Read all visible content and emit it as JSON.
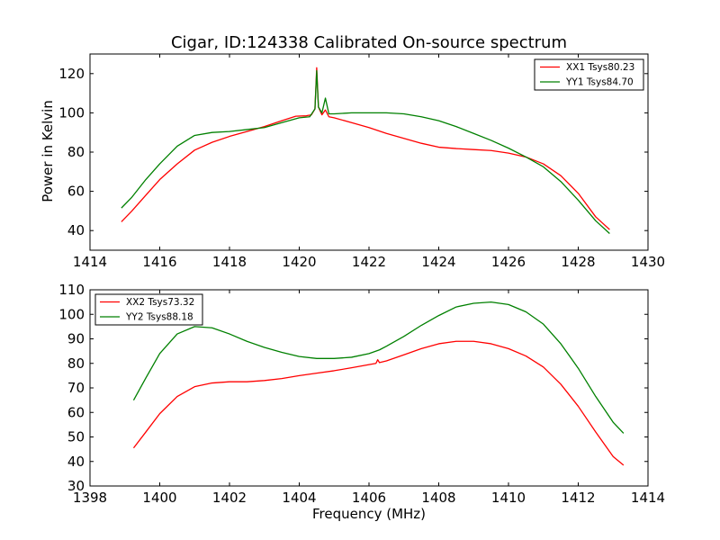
{
  "colors": {
    "red": "#ff0000",
    "green": "#008000"
  },
  "chart_data": [
    {
      "type": "line",
      "title": "Cigar, ID:124338 Calibrated On-source spectrum",
      "xlabel": "",
      "ylabel": "Power in Kelvin",
      "xlim": [
        1414,
        1430
      ],
      "ylim": [
        30,
        130
      ],
      "xticks": [
        1414,
        1416,
        1418,
        1420,
        1422,
        1424,
        1426,
        1428,
        1430
      ],
      "yticks": [
        40,
        60,
        80,
        100,
        120
      ],
      "legend_position": "top-right",
      "series": [
        {
          "name": "XX1 Tsys80.23",
          "color": "#ff0000",
          "points": [
            [
              1414.9,
              44.5
            ],
            [
              1415.2,
              50
            ],
            [
              1415.6,
              58
            ],
            [
              1416.0,
              66
            ],
            [
              1416.5,
              74
            ],
            [
              1417.0,
              81
            ],
            [
              1417.5,
              85
            ],
            [
              1418.0,
              88
            ],
            [
              1418.5,
              90.5
            ],
            [
              1419.0,
              93
            ],
            [
              1419.5,
              96
            ],
            [
              1419.9,
              98.3
            ],
            [
              1420.2,
              98.5
            ],
            [
              1420.35,
              99
            ],
            [
              1420.45,
              102
            ],
            [
              1420.5,
              123
            ],
            [
              1420.55,
              103
            ],
            [
              1420.65,
              99
            ],
            [
              1420.75,
              101.5
            ],
            [
              1420.85,
              98
            ],
            [
              1421.0,
              97.5
            ],
            [
              1421.5,
              95
            ],
            [
              1422.0,
              92.5
            ],
            [
              1422.5,
              89.5
            ],
            [
              1423.0,
              87
            ],
            [
              1423.5,
              84.5
            ],
            [
              1424.0,
              82.5
            ],
            [
              1424.5,
              81.8
            ],
            [
              1425.0,
              81.3
            ],
            [
              1425.5,
              80.8
            ],
            [
              1426.0,
              79.5
            ],
            [
              1426.5,
              77.5
            ],
            [
              1427.0,
              74
            ],
            [
              1427.5,
              68
            ],
            [
              1428.0,
              59
            ],
            [
              1428.5,
              47
            ],
            [
              1428.9,
              40.5
            ]
          ]
        },
        {
          "name": "YY1 Tsys84.70",
          "color": "#008000",
          "points": [
            [
              1414.9,
              51.5
            ],
            [
              1415.2,
              57
            ],
            [
              1415.6,
              66
            ],
            [
              1416.0,
              74
            ],
            [
              1416.5,
              83
            ],
            [
              1417.0,
              88.5
            ],
            [
              1417.5,
              90
            ],
            [
              1418.0,
              90.5
            ],
            [
              1418.5,
              91.5
            ],
            [
              1419.0,
              92.5
            ],
            [
              1419.5,
              95
            ],
            [
              1420.0,
              97.5
            ],
            [
              1420.3,
              98
            ],
            [
              1420.45,
              102
            ],
            [
              1420.5,
              121.5
            ],
            [
              1420.55,
              103
            ],
            [
              1420.65,
              100
            ],
            [
              1420.75,
              107.5
            ],
            [
              1420.85,
              99.5
            ],
            [
              1421.0,
              99.5
            ],
            [
              1421.5,
              100
            ],
            [
              1422.0,
              100
            ],
            [
              1422.5,
              100
            ],
            [
              1423.0,
              99.5
            ],
            [
              1423.5,
              98
            ],
            [
              1424.0,
              96
            ],
            [
              1424.5,
              93
            ],
            [
              1425.0,
              89.5
            ],
            [
              1425.5,
              86
            ],
            [
              1426.0,
              82
            ],
            [
              1426.5,
              77.5
            ],
            [
              1427.0,
              72.5
            ],
            [
              1427.5,
              65
            ],
            [
              1428.0,
              55.5
            ],
            [
              1428.5,
              45
            ],
            [
              1428.9,
              38.5
            ]
          ]
        }
      ]
    },
    {
      "type": "line",
      "title": "",
      "xlabel": "Frequency (MHz)",
      "ylabel": "",
      "xlim": [
        1398,
        1414
      ],
      "ylim": [
        30,
        110
      ],
      "xticks": [
        1398,
        1400,
        1402,
        1404,
        1406,
        1408,
        1410,
        1412,
        1414
      ],
      "yticks": [
        30,
        40,
        50,
        60,
        70,
        80,
        90,
        100,
        110
      ],
      "legend_position": "top-left",
      "series": [
        {
          "name": "XX2 Tsys73.32",
          "color": "#ff0000",
          "points": [
            [
              1399.25,
              45.5
            ],
            [
              1399.6,
              52
            ],
            [
              1400.0,
              59.5
            ],
            [
              1400.5,
              66.5
            ],
            [
              1401.0,
              70.5
            ],
            [
              1401.5,
              72
            ],
            [
              1402.0,
              72.5
            ],
            [
              1402.5,
              72.5
            ],
            [
              1403.0,
              73
            ],
            [
              1403.5,
              73.8
            ],
            [
              1404.0,
              75
            ],
            [
              1404.5,
              76
            ],
            [
              1405.0,
              77
            ],
            [
              1405.5,
              78.2
            ],
            [
              1406.0,
              79.5
            ],
            [
              1406.2,
              80
            ],
            [
              1406.25,
              81.5
            ],
            [
              1406.3,
              80.3
            ],
            [
              1406.5,
              81
            ],
            [
              1407.0,
              83.5
            ],
            [
              1407.5,
              86
            ],
            [
              1408.0,
              88
            ],
            [
              1408.5,
              89
            ],
            [
              1409.0,
              89
            ],
            [
              1409.5,
              88
            ],
            [
              1410.0,
              86
            ],
            [
              1410.5,
              83
            ],
            [
              1411.0,
              78.5
            ],
            [
              1411.5,
              71.5
            ],
            [
              1412.0,
              62.5
            ],
            [
              1412.5,
              52
            ],
            [
              1413.0,
              42
            ],
            [
              1413.3,
              38.5
            ]
          ]
        },
        {
          "name": "YY2 Tsys88.18",
          "color": "#008000",
          "points": [
            [
              1399.25,
              65
            ],
            [
              1399.6,
              74
            ],
            [
              1400.0,
              84
            ],
            [
              1400.5,
              92
            ],
            [
              1401.0,
              95
            ],
            [
              1401.5,
              94.5
            ],
            [
              1402.0,
              92
            ],
            [
              1402.5,
              89
            ],
            [
              1403.0,
              86.5
            ],
            [
              1403.5,
              84.5
            ],
            [
              1404.0,
              82.8
            ],
            [
              1404.5,
              82
            ],
            [
              1405.0,
              82
            ],
            [
              1405.5,
              82.5
            ],
            [
              1406.0,
              84
            ],
            [
              1406.3,
              85.5
            ],
            [
              1406.5,
              87
            ],
            [
              1407.0,
              91
            ],
            [
              1407.5,
              95.5
            ],
            [
              1408.0,
              99.5
            ],
            [
              1408.5,
              103
            ],
            [
              1409.0,
              104.5
            ],
            [
              1409.5,
              105
            ],
            [
              1410.0,
              104
            ],
            [
              1410.5,
              101
            ],
            [
              1411.0,
              96
            ],
            [
              1411.5,
              88
            ],
            [
              1412.0,
              78
            ],
            [
              1412.5,
              66.5
            ],
            [
              1413.0,
              56
            ],
            [
              1413.3,
              51.5
            ]
          ]
        }
      ]
    }
  ]
}
